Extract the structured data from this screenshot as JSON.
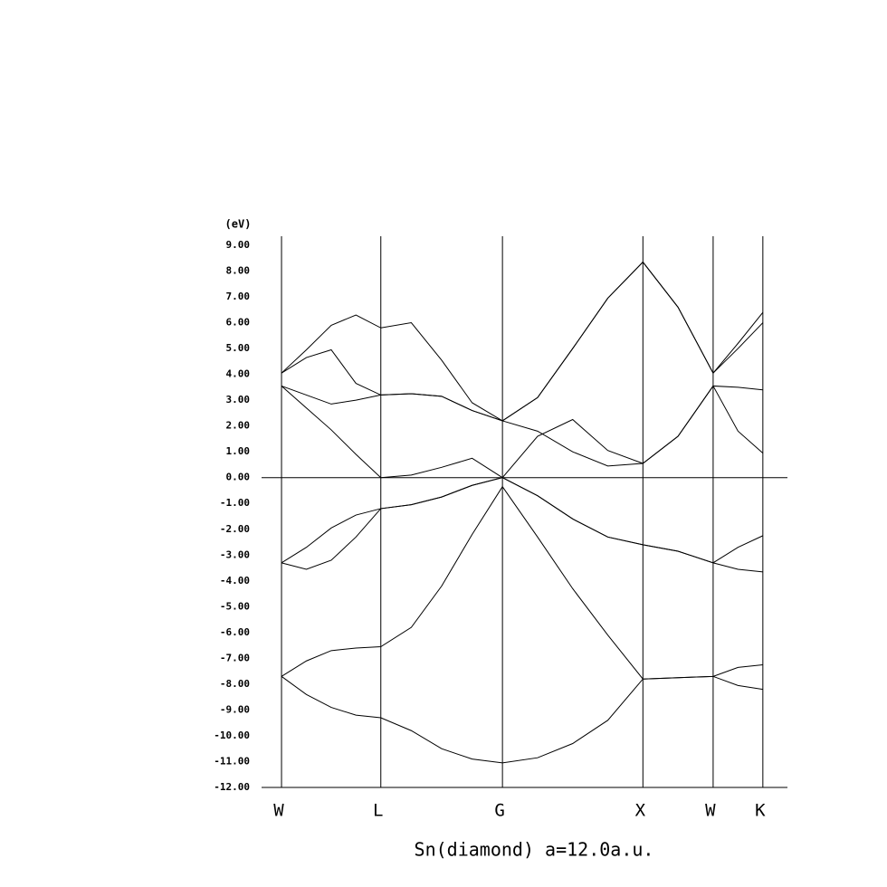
{
  "chart_data": {
    "type": "line",
    "title": "Sn(diamond) a=12.0a.u.",
    "y_label": "(eV)",
    "x": [
      0,
      0.177,
      0.354,
      0.53,
      0.707,
      0.924,
      1.14,
      1.357,
      1.573,
      1.823,
      2.073,
      2.323,
      2.573,
      2.823,
      3.073,
      3.25,
      3.427
    ],
    "xlim": [
      -0.142,
      3.602
    ],
    "xticks": [
      {
        "value": 0,
        "label": "W"
      },
      {
        "value": 0.707,
        "label": "L"
      },
      {
        "value": 1.573,
        "label": "G"
      },
      {
        "value": 2.573,
        "label": "X"
      },
      {
        "value": 3.073,
        "label": "W"
      },
      {
        "value": 3.427,
        "label": "K"
      }
    ],
    "ylim": [
      -12,
      9.35
    ],
    "yticks": [
      {
        "value": 9,
        "label": "9.00"
      },
      {
        "value": 8,
        "label": "8.00"
      },
      {
        "value": 7,
        "label": "7.00"
      },
      {
        "value": 6,
        "label": "6.00"
      },
      {
        "value": 5,
        "label": "5.00"
      },
      {
        "value": 4,
        "label": "4.00"
      },
      {
        "value": 3,
        "label": "3.00"
      },
      {
        "value": 2,
        "label": "2.00"
      },
      {
        "value": 1,
        "label": "1.00"
      },
      {
        "value": 0,
        "label": "0.00"
      },
      {
        "value": -1,
        "label": "-1.00"
      },
      {
        "value": -2,
        "label": "-2.00"
      },
      {
        "value": -3,
        "label": "-3.00"
      },
      {
        "value": -4,
        "label": "-4.00"
      },
      {
        "value": -5,
        "label": "-5.00"
      },
      {
        "value": -6,
        "label": "-6.00"
      },
      {
        "value": -7,
        "label": "-7.00"
      },
      {
        "value": -8,
        "label": "-8.00"
      },
      {
        "value": -9,
        "label": "-9.00"
      },
      {
        "value": -10,
        "label": "-10.00"
      },
      {
        "value": -11,
        "label": "-11.00"
      },
      {
        "value": -12,
        "label": "-12.00"
      }
    ],
    "zero_line": true,
    "series": [
      {
        "color": "#000000",
        "values": [
          -7.7,
          -8.4,
          -8.9,
          -9.2,
          -9.3,
          -9.8,
          -10.5,
          -10.9,
          -11.05,
          -10.85,
          -10.3,
          -9.4,
          -7.8,
          -7.75,
          -7.7,
          -8.05,
          -8.2
        ]
      },
      {
        "color": "#000000",
        "values": [
          -7.7,
          -7.1,
          -6.7,
          -6.6,
          -6.55,
          -5.8,
          -4.2,
          -2.2,
          -0.35,
          -2.3,
          -4.3,
          -6.1,
          -7.8,
          -7.75,
          -7.7,
          -7.35,
          -7.25
        ]
      },
      {
        "color": "#000000",
        "values": [
          -3.3,
          -3.55,
          -3.2,
          -2.3,
          -1.2,
          -1.05,
          -0.75,
          -0.3,
          0,
          -0.7,
          -1.6,
          -2.3,
          -2.6,
          -2.85,
          -3.3,
          -3.55,
          -3.65
        ]
      },
      {
        "color": "#000000",
        "values": [
          -3.3,
          -2.7,
          -1.95,
          -1.45,
          -1.2,
          -1.05,
          -0.75,
          -0.3,
          0,
          -0.7,
          -1.6,
          -2.3,
          -2.6,
          -2.85,
          -3.3,
          -2.7,
          -2.25
        ]
      },
      {
        "color": "#000000",
        "values": [
          3.55,
          2.7,
          1.85,
          0.9,
          0,
          0.1,
          0.4,
          0.75,
          0,
          1.6,
          2.25,
          1.05,
          0.55,
          1.6,
          3.55,
          1.8,
          0.95
        ]
      },
      {
        "color": "#000000",
        "values": [
          3.55,
          3.2,
          2.85,
          3.0,
          3.2,
          3.25,
          3.15,
          2.6,
          2.2,
          1.8,
          1.0,
          0.45,
          0.55,
          1.6,
          3.55,
          3.5,
          3.4
        ]
      },
      {
        "color": "#000000",
        "values": [
          4.05,
          4.65,
          4.95,
          3.65,
          3.2,
          3.25,
          3.15,
          2.6,
          2.2,
          3.1,
          5.0,
          6.95,
          8.35,
          6.6,
          4.05,
          5.0,
          6.0
        ]
      },
      {
        "color": "#000000",
        "values": [
          4.05,
          4.95,
          5.9,
          6.3,
          5.8,
          6.0,
          4.55,
          2.9,
          2.2,
          3.1,
          5.0,
          6.95,
          8.35,
          6.6,
          4.05,
          5.2,
          6.4
        ]
      }
    ]
  }
}
